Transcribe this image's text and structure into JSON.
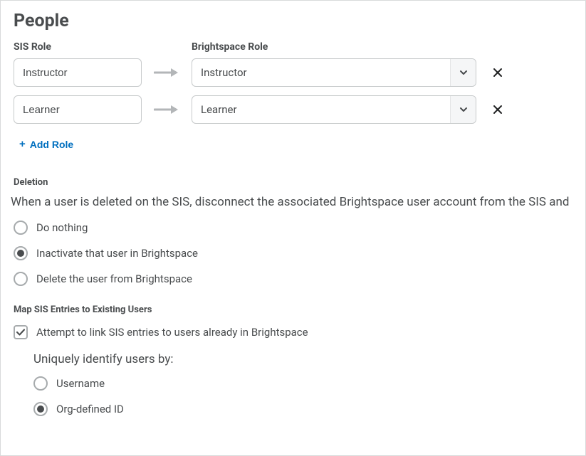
{
  "title": "People",
  "columns": {
    "sis": "SIS Role",
    "brightspace": "Brightspace Role"
  },
  "roles": [
    {
      "sis_value": "Instructor",
      "brightspace_value": "Instructor"
    },
    {
      "sis_value": "Learner",
      "brightspace_value": "Learner"
    }
  ],
  "add_role_label": "Add Role",
  "deletion": {
    "heading": "Deletion",
    "prompt": "When a user is deleted on the SIS, disconnect the associated Brightspace user account from the SIS and",
    "options": [
      {
        "label": "Do nothing",
        "selected": false
      },
      {
        "label": "Inactivate that user in Brightspace",
        "selected": true
      },
      {
        "label": "Delete the user from Brightspace",
        "selected": false
      }
    ]
  },
  "mapping": {
    "heading": "Map SIS Entries to Existing Users",
    "checkbox_label": "Attempt to link SIS entries to users already in Brightspace",
    "checkbox_checked": true,
    "identify_label": "Uniquely identify users by:",
    "identify_options": [
      {
        "label": "Username",
        "selected": false
      },
      {
        "label": "Org-defined ID",
        "selected": true
      }
    ]
  },
  "colors": {
    "border": "#d8dadb",
    "input_border": "#c7cacb",
    "text": "#494c4e",
    "link": "#006fbf",
    "arrow": "#b3b6b8",
    "icon": "#494c4e"
  },
  "icons": {
    "arrow_right": "arrow-right-icon",
    "chevron_down": "chevron-down-icon",
    "close": "close-icon",
    "plus": "plus-icon",
    "check": "check-icon"
  }
}
